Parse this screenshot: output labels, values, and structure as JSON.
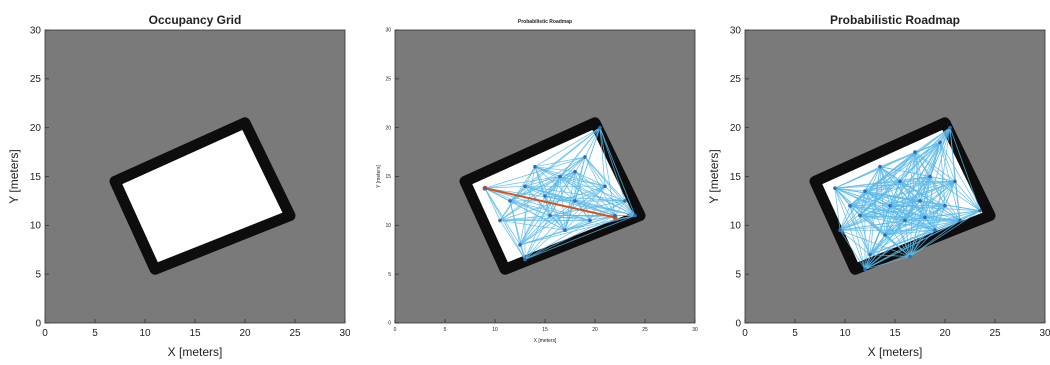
{
  "chart_data": [
    {
      "type": "heatmap",
      "title": "Occupancy Grid",
      "xlabel": "X [meters]",
      "ylabel": "Y [meters]",
      "xlim": [
        0,
        30
      ],
      "ylim": [
        0,
        30
      ],
      "xticks": [
        0,
        5,
        10,
        15,
        20,
        25,
        30
      ],
      "yticks": [
        0,
        5,
        10,
        15,
        20,
        25,
        30
      ],
      "free_region_corners": [
        [
          7,
          14.5
        ],
        [
          20,
          20.5
        ],
        [
          24.5,
          11
        ],
        [
          11,
          5.5
        ]
      ],
      "colors": {
        "unknown": "#7a7a7a",
        "free": "#ffffff",
        "occupied": "#0d0d0d"
      }
    },
    {
      "type": "scatter",
      "title": "Probabilistic Roadmap",
      "xlabel": "X [meters]",
      "ylabel": "Y [meters]",
      "xlim": [
        0,
        30
      ],
      "ylim": [
        0,
        30
      ],
      "xticks": [
        0,
        5,
        10,
        15,
        20,
        25,
        30
      ],
      "yticks": [
        0,
        5,
        10,
        15,
        20,
        25,
        30
      ],
      "nodes": [
        [
          9,
          13.8
        ],
        [
          10.5,
          10.5
        ],
        [
          11.5,
          12.5
        ],
        [
          12.5,
          8
        ],
        [
          13,
          14
        ],
        [
          14,
          16
        ],
        [
          15,
          13
        ],
        [
          15.5,
          11
        ],
        [
          16.5,
          15
        ],
        [
          17,
          9.5
        ],
        [
          18,
          12.5
        ],
        [
          19,
          17
        ],
        [
          19.5,
          10.5
        ],
        [
          20.5,
          20
        ],
        [
          21,
          14
        ],
        [
          22,
          11
        ],
        [
          23,
          12.5
        ],
        [
          13,
          6.5
        ],
        [
          18,
          15.5
        ],
        [
          24,
          11
        ]
      ],
      "path": [
        [
          9,
          13.8
        ],
        [
          22,
          10.8
        ]
      ],
      "colors": {
        "edges": "#5bb8e8",
        "nodes": "#2f6db5",
        "path": "#d95319"
      }
    },
    {
      "type": "scatter",
      "title": "Probabilistic Roadmap",
      "xlabel": "X [meters]",
      "ylabel": "Y [meters]",
      "xlim": [
        0,
        30
      ],
      "ylim": [
        0,
        30
      ],
      "xticks": [
        0,
        5,
        10,
        15,
        20,
        25,
        30
      ],
      "yticks": [
        0,
        5,
        10,
        15,
        20,
        25,
        30
      ],
      "nodes": [
        [
          9,
          13.8
        ],
        [
          9.5,
          9.5
        ],
        [
          11.5,
          11
        ],
        [
          12,
          13.5
        ],
        [
          12.5,
          7
        ],
        [
          13.5,
          16
        ],
        [
          14,
          9
        ],
        [
          14.5,
          12
        ],
        [
          15.5,
          14.5
        ],
        [
          16,
          10.5
        ],
        [
          17,
          17.5
        ],
        [
          17.5,
          12.5
        ],
        [
          18.5,
          15
        ],
        [
          19,
          9.5
        ],
        [
          19.5,
          18.5
        ],
        [
          20,
          12
        ],
        [
          20.5,
          20
        ],
        [
          21,
          14.5
        ],
        [
          21.5,
          10.5
        ],
        [
          23.5,
          11.5
        ],
        [
          12,
          5.5
        ],
        [
          16.5,
          6.8
        ],
        [
          10.5,
          12
        ],
        [
          18,
          10.8
        ]
      ],
      "colors": {
        "edges": "#5bb8e8",
        "nodes": "#2f6db5"
      }
    }
  ]
}
